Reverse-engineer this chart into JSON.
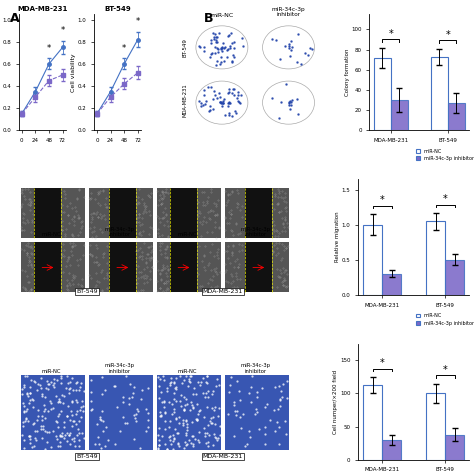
{
  "MDA_MB_231_title": "MDA-MB-231",
  "BT_549_title": "BT-549",
  "timepoints": [
    0,
    24,
    48,
    72
  ],
  "miR_NC_MDA": [
    0.15,
    0.35,
    0.6,
    0.75
  ],
  "miR_NC_MDA_err": [
    0.02,
    0.04,
    0.05,
    0.06
  ],
  "miR_inhibitor_MDA": [
    0.15,
    0.3,
    0.45,
    0.5
  ],
  "miR_inhibitor_MDA_err": [
    0.02,
    0.04,
    0.05,
    0.05
  ],
  "miR_NC_BT": [
    0.15,
    0.35,
    0.6,
    0.82
  ],
  "miR_NC_BT_err": [
    0.02,
    0.04,
    0.05,
    0.07
  ],
  "miR_inhibitor_BT": [
    0.15,
    0.3,
    0.42,
    0.52
  ],
  "miR_inhibitor_BT_err": [
    0.02,
    0.04,
    0.05,
    0.06
  ],
  "colony_MDA_NC": 72,
  "colony_MDA_NC_err": 10,
  "colony_MDA_inh": 30,
  "colony_MDA_inh_err": 12,
  "colony_BT_NC": 73,
  "colony_BT_NC_err": 8,
  "colony_BT_inh": 27,
  "colony_BT_inh_err": 10,
  "migration_MDA_NC": 1.0,
  "migration_MDA_NC_err": 0.15,
  "migration_MDA_inh": 0.3,
  "migration_MDA_inh_err": 0.05,
  "migration_BT_NC": 1.05,
  "migration_BT_NC_err": 0.12,
  "migration_BT_inh": 0.5,
  "migration_BT_inh_err": 0.08,
  "invasion_MDA_NC": 113,
  "invasion_MDA_NC_err": 12,
  "invasion_MDA_inh": 30,
  "invasion_MDA_inh_err": 8,
  "invasion_BT_NC": 100,
  "invasion_BT_NC_err": 15,
  "invasion_BT_inh": 38,
  "invasion_BT_inh_err": 10,
  "color_NC": "#4472C4",
  "color_inhibitor": "#7B68C8",
  "label_NC": "miR-NC",
  "label_inhibitor": "miR-34c-3p inhibitor"
}
